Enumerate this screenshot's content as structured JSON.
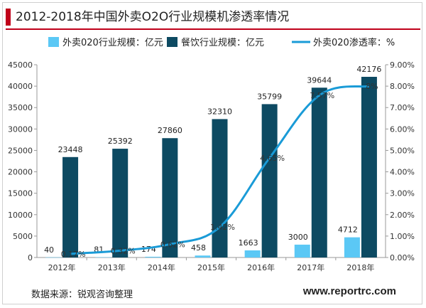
{
  "header": {
    "title": "2012-2018年中国外卖O2O行业规模机渗透率情况"
  },
  "footer": {
    "source": "数据来源：锐观咨询整理",
    "website": "www.reportrc.com"
  },
  "chart_data": {
    "type": "bar",
    "title": "2012-2018年中国外卖O2O行业规模机渗透率情况",
    "categories": [
      "2012年",
      "2013年",
      "2014年",
      "2015年",
      "2016年",
      "2017年",
      "2018年"
    ],
    "series": [
      {
        "name": "外卖020行业规模：亿元",
        "type": "bar",
        "axis": "left",
        "values": [
          40,
          81,
          174,
          458,
          1663,
          3000,
          4712
        ],
        "labels": [
          "40",
          "81",
          "174",
          "458",
          "1663",
          "3000",
          "4712"
        ],
        "color": "#5bc8f5"
      },
      {
        "name": "餐饮行业规模：亿元",
        "type": "bar",
        "axis": "left",
        "values": [
          23448,
          25392,
          27860,
          32310,
          35799,
          39644,
          42176
        ],
        "labels": [
          "23448",
          "25392",
          "27860",
          "32310",
          "35799",
          "39644",
          "42176"
        ],
        "color": "#0d4a62"
      },
      {
        "name": "外卖020渗透率：%",
        "type": "line",
        "axis": "right",
        "values": [
          0.17,
          0.32,
          0.62,
          1.42,
          4.65,
          7.57,
          8.0
        ],
        "labels": [
          "0.17%",
          "0.32%",
          "0.62%",
          "1.42%",
          "4.65%",
          "7.57%",
          "8%"
        ],
        "color": "#1a9bd7"
      }
    ],
    "y_left": {
      "min": 0,
      "max": 45000,
      "ticks": [
        "0",
        "5000",
        "10000",
        "15000",
        "20000",
        "25000",
        "30000",
        "35000",
        "40000",
        "45000"
      ]
    },
    "y_right": {
      "min": 0,
      "max": 9,
      "ticks": [
        "0.00%",
        "1.00%",
        "2.00%",
        "3.00%",
        "4.00%",
        "5.00%",
        "6.00%",
        "7.00%",
        "8.00%",
        "9.00%"
      ]
    },
    "grid": false,
    "legend": "top"
  }
}
